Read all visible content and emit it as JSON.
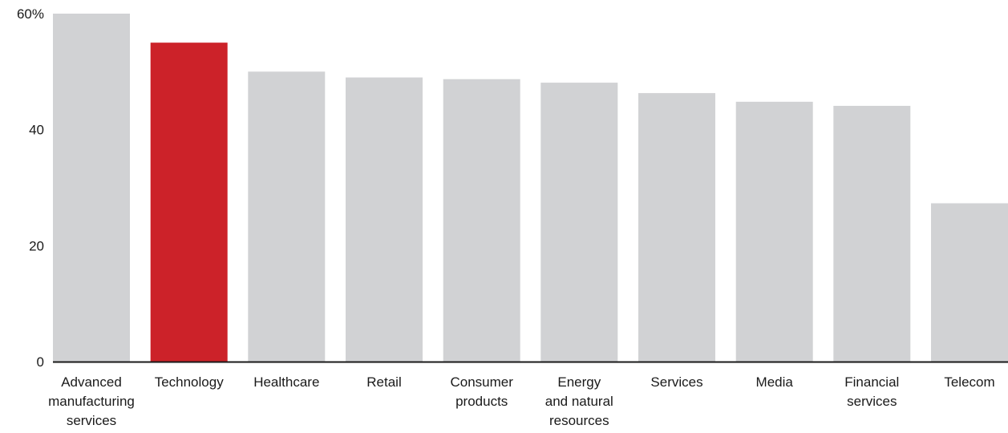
{
  "chart_data": {
    "type": "bar",
    "categories": [
      "Advanced manufacturing services",
      "Technology",
      "Healthcare",
      "Retail",
      "Consumer products",
      "Energy and natural resources",
      "Services",
      "Media",
      "Financial services",
      "Telecom"
    ],
    "category_lines": [
      [
        "Advanced",
        "manufacturing",
        "services"
      ],
      [
        "Technology"
      ],
      [
        "Healthcare"
      ],
      [
        "Retail"
      ],
      [
        "Consumer",
        "products"
      ],
      [
        "Energy",
        "and natural",
        "resources"
      ],
      [
        "Services"
      ],
      [
        "Media"
      ],
      [
        "Financial",
        "services"
      ],
      [
        "Telecom"
      ]
    ],
    "values": [
      60,
      55,
      50,
      49,
      48.7,
      48.1,
      46.3,
      44.8,
      44.1,
      27.3
    ],
    "highlight_index": 1,
    "ylim": [
      0,
      60
    ],
    "yticks": [
      0,
      20,
      40,
      60
    ],
    "ytick_labels": [
      "0",
      "20",
      "40",
      "60%"
    ],
    "title": "",
    "xlabel": "",
    "ylabel": "",
    "grid": false,
    "colors": {
      "bar": "#d1d2d4",
      "highlight": "#cc2229",
      "axis": "#1a1a1a"
    }
  }
}
